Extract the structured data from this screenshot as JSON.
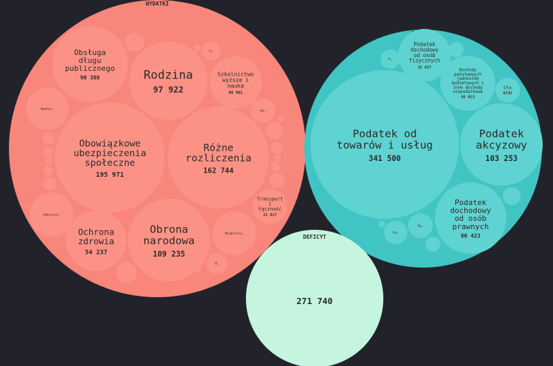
{
  "chart_data": {
    "type": "circle-packing",
    "groups": [
      {
        "id": "wydatki",
        "label": "WYDATKI",
        "color": "#f8867a",
        "child_color": "#fc9285",
        "items": [
          {
            "label": "Obsługa długu publicznego",
            "display": "90 388",
            "value": 90388
          },
          {
            "label": "Rodzina",
            "display": "97 922",
            "value": 97922
          },
          {
            "label": "Szkolnictwo wyższe i nauka",
            "display": "40 961",
            "value": 40961
          },
          {
            "label": "Obowiązkowe ubezpieczenia społeczne",
            "display": "195 971",
            "value": 195971
          },
          {
            "label": "Różne rozliczenia",
            "display": "162 744",
            "value": 162744
          },
          {
            "label": "Transport i łączność",
            "display": "21 817",
            "value": 21817
          },
          {
            "label": "Ochrona zdrowia",
            "display": "54 237",
            "value": 54237
          },
          {
            "label": "Obrona narodowa",
            "display": "109 235",
            "value": 109235
          },
          {
            "label": "Wymiar…",
            "display": "",
            "value": null
          },
          {
            "label": "Administ…",
            "display": "",
            "value": null
          },
          {
            "label": "Bezpiecze…",
            "display": "",
            "value": null
          },
          {
            "label": "Ro…",
            "display": "",
            "value": null
          },
          {
            "label": "S…",
            "display": "",
            "value": null
          },
          {
            "label": "P…",
            "display": "",
            "value": null
          },
          {
            "label": "",
            "display": "",
            "value": null
          },
          {
            "label": "",
            "display": "",
            "value": null
          },
          {
            "label": "",
            "display": "",
            "value": null
          },
          {
            "label": "",
            "display": "",
            "value": null
          },
          {
            "label": "",
            "display": "",
            "value": null
          },
          {
            "label": "",
            "display": "",
            "value": null
          },
          {
            "label": "",
            "display": "",
            "value": null
          },
          {
            "label": "",
            "display": "",
            "value": null
          },
          {
            "label": "",
            "display": "",
            "value": null
          },
          {
            "label": "",
            "display": "",
            "value": null
          },
          {
            "label": "",
            "display": "",
            "value": null
          },
          {
            "label": "",
            "display": "",
            "value": null
          },
          {
            "label": "",
            "display": "",
            "value": null
          },
          {
            "label": "",
            "display": "",
            "value": null
          },
          {
            "label": "",
            "display": "",
            "value": null
          }
        ]
      },
      {
        "id": "dochody",
        "label": "DOCHODY",
        "color": "#40c5c4",
        "child_color": "#5fd3d1",
        "items": [
          {
            "label": "Podatek od towarów i usług",
            "display": "341 500",
            "value": 341500
          },
          {
            "label": "Podatek akcyzowy",
            "display": "103 253",
            "value": 103253
          },
          {
            "label": "Podatek dochodowy od osób prawnych",
            "display": "80 423",
            "value": 80423
          },
          {
            "label": "Podatek dochodowy od osób fizycznych",
            "display": "32 837",
            "value": 32837
          },
          {
            "label": "Dochody państwowych jednostek budżetowych i inne dochody niepodatkowe",
            "display": "45 613",
            "value": 45613
          },
          {
            "label": "Cło",
            "display": "8732",
            "value": 8732
          },
          {
            "label": "P…",
            "display": "",
            "value": null
          },
          {
            "label": "Po…",
            "display": "",
            "value": null
          },
          {
            "label": "Dy…",
            "display": "",
            "value": null
          },
          {
            "label": "",
            "display": "",
            "value": null
          },
          {
            "label": "",
            "display": "",
            "value": null
          },
          {
            "label": "",
            "display": "",
            "value": null
          },
          {
            "label": "",
            "display": "",
            "value": null
          }
        ]
      },
      {
        "id": "deficyt",
        "label": "DEFICYT",
        "color": "#c5f5df",
        "child_color": "#c5f5df",
        "display": "271 740",
        "value": 271740,
        "items": []
      }
    ]
  }
}
